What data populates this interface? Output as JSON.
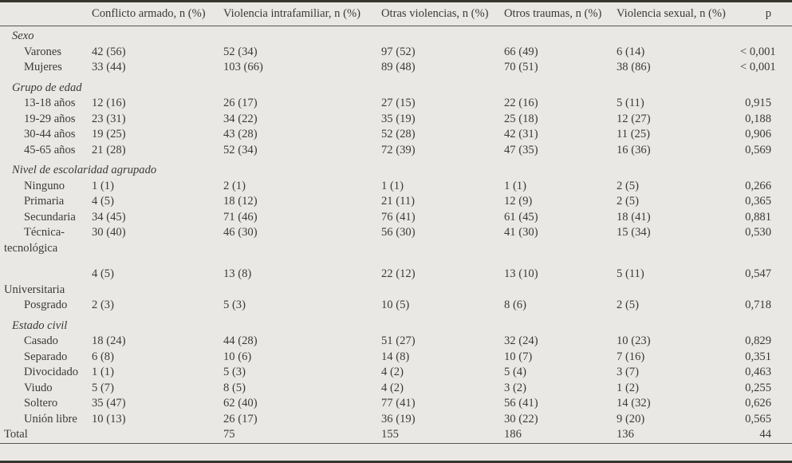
{
  "table": {
    "columns": [
      {
        "label": ""
      },
      {
        "label": "Conflicto armado, n (%)"
      },
      {
        "label": "Violencia intrafamiliar, n (%)"
      },
      {
        "label": "Otras violencias, n (%)"
      },
      {
        "label": "Otros traumas, n (%)"
      },
      {
        "label": "Violencia sexual, n (%)"
      },
      {
        "label": "p"
      }
    ],
    "rows": [
      {
        "style": "group",
        "first": true,
        "label": "Sexo"
      },
      {
        "style": "item",
        "label": "Varones",
        "values": [
          "42 (56)",
          "52 (34)",
          "97 (52)",
          "66 (49)",
          "6 (14)",
          "< 0,001"
        ]
      },
      {
        "style": "item",
        "label": "Mujeres",
        "values": [
          "33 (44)",
          "103 (66)",
          "89 (48)",
          "70 (51)",
          "38 (86)",
          "< 0,001"
        ]
      },
      {
        "style": "group",
        "label": "Grupo de edad"
      },
      {
        "style": "item",
        "label": "13-18 años",
        "values": [
          "12 (16)",
          "26 (17)",
          "27 (15)",
          "22 (16)",
          "5 (11)",
          "0,915"
        ]
      },
      {
        "style": "item",
        "label": "19-29 años",
        "values": [
          "23 (31)",
          "34 (22)",
          "35 (19)",
          "25 (18)",
          "12 (27)",
          "0,188"
        ]
      },
      {
        "style": "item",
        "label": "30-44 años",
        "values": [
          "19 (25)",
          "43 (28)",
          "52 (28)",
          "42 (31)",
          "11 (25)",
          "0,906"
        ]
      },
      {
        "style": "item",
        "label": "45-65 años",
        "values": [
          "21 (28)",
          "52 (34)",
          "72 (39)",
          "47 (35)",
          "16 (36)",
          "0,569"
        ]
      },
      {
        "style": "group",
        "label": "Nivel de escolaridad agrupado"
      },
      {
        "style": "item",
        "label": "Ninguno",
        "values": [
          "1 (1)",
          "2 (1)",
          "1 (1)",
          "1 (1)",
          "2 (5)",
          "0,266"
        ]
      },
      {
        "style": "item",
        "label": "Primaria",
        "values": [
          "4 (5)",
          "18 (12)",
          "21 (11)",
          "12 (9)",
          "2 (5)",
          "0,365"
        ]
      },
      {
        "style": "item",
        "label": "Secundaria",
        "values": [
          "34 (45)",
          "71 (46)",
          "76 (41)",
          "61 (45)",
          "18 (41)",
          "0,881"
        ]
      },
      {
        "style": "item",
        "label": "Técnica-",
        "values": [
          "30 (40)",
          "46 (30)",
          "56 (30)",
          "41 (30)",
          "15 (34)",
          "0,530"
        ]
      },
      {
        "style": "hang",
        "label": "tecnológica"
      },
      {
        "style": "spacer",
        "label": ""
      },
      {
        "style": "item",
        "label": "",
        "values": [
          "4 (5)",
          "13 (8)",
          "22 (12)",
          "13 (10)",
          "5 (11)",
          "0,547"
        ]
      },
      {
        "style": "hang",
        "label": "Universitaria"
      },
      {
        "style": "item",
        "label": "Posgrado",
        "values": [
          "2 (3)",
          "5 (3)",
          "10 (5)",
          "8 (6)",
          "2 (5)",
          "0,718"
        ]
      },
      {
        "style": "group",
        "label": "Estado civil"
      },
      {
        "style": "item",
        "label": "Casado",
        "values": [
          "18 (24)",
          "44 (28)",
          "51 (27)",
          "32 (24)",
          "10 (23)",
          "0,829"
        ]
      },
      {
        "style": "item",
        "label": "Separado",
        "values": [
          "6 (8)",
          "10 (6)",
          "14 (8)",
          "10 (7)",
          "7 (16)",
          "0,351"
        ]
      },
      {
        "style": "item",
        "label": "Divocidado",
        "values": [
          "1 (1)",
          "5 (3)",
          "4 (2)",
          "5 (4)",
          "3 (7)",
          "0,463"
        ]
      },
      {
        "style": "item",
        "label": "Viudo",
        "values": [
          "5 (7)",
          "8 (5)",
          "4 (2)",
          "3 (2)",
          "1 (2)",
          "0,255"
        ]
      },
      {
        "style": "item",
        "label": "Soltero",
        "values": [
          "35 (47)",
          "62 (40)",
          "77 (41)",
          "56 (41)",
          "14 (32)",
          "0,626"
        ]
      },
      {
        "style": "item",
        "label": "Unión libre",
        "values": [
          "10 (13)",
          "26 (17)",
          "36 (19)",
          "30 (22)",
          "9 (20)",
          "0,565"
        ]
      },
      {
        "style": "plain",
        "label": "Total",
        "values": [
          "",
          "75",
          "155",
          "186",
          "136",
          "44"
        ]
      }
    ]
  }
}
